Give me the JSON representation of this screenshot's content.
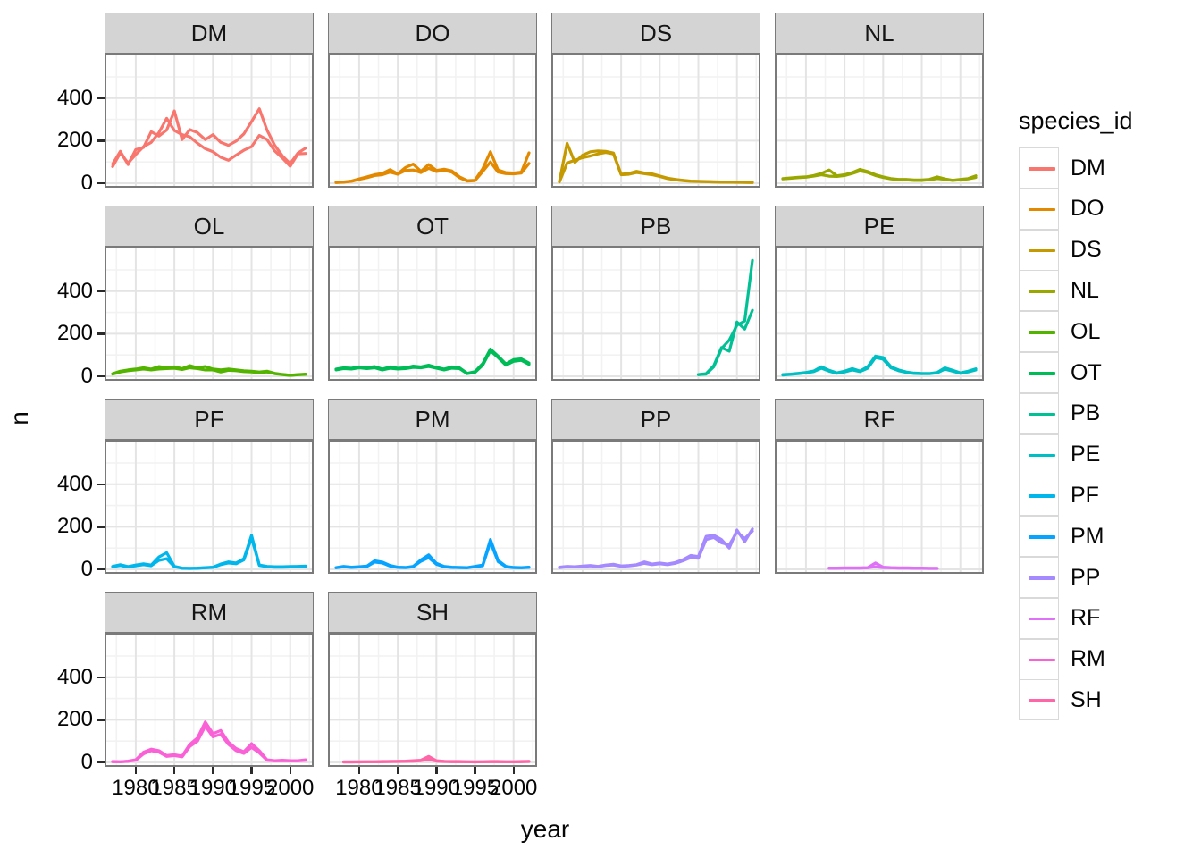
{
  "chart_data": {
    "type": "line",
    "title": "",
    "xlabel": "year",
    "ylabel": "n",
    "legend_title": "species_id",
    "legend_position": "right",
    "grid": "major+minor",
    "x_ticks": [
      "1980",
      "1985",
      "1990",
      "1995",
      "2000"
    ],
    "x_tick_years": [
      1980,
      1985,
      1990,
      1995,
      2000
    ],
    "y_ticks": [
      0,
      200,
      400
    ],
    "xlim": [
      1977,
      2002
    ],
    "ylim": [
      0,
      570
    ],
    "facet_order": [
      "DM",
      "DO",
      "DS",
      "NL",
      "OL",
      "OT",
      "PB",
      "PE",
      "PF",
      "PM",
      "PP",
      "RF",
      "RM",
      "SH"
    ],
    "facets": [
      {
        "id": "DM",
        "color": "#F8766D",
        "series": [
          {
            "name": "line-a",
            "year_start": 1977,
            "values": [
              90,
              150,
              88,
              158,
              168,
              242,
              222,
              250,
              340,
              205,
              252,
              238,
              205,
              228,
              192,
              178,
              198,
              232,
              290,
              350,
              250,
              178,
              128,
              92,
              142,
              165
            ]
          },
          {
            "name": "line-b",
            "year_start": 1977,
            "values": [
              78,
              142,
              95,
              135,
              172,
              192,
              238,
              305,
              248,
              228,
              218,
              188,
              162,
              148,
              122,
              108,
              132,
              155,
              172,
              225,
              205,
              152,
              118,
              80,
              138,
              140
            ]
          }
        ]
      },
      {
        "id": "DO",
        "color": "#E38900",
        "series": [
          {
            "name": "line-a",
            "year_start": 1977,
            "values": [
              4,
              6,
              10,
              20,
              30,
              40,
              46,
              64,
              44,
              74,
              90,
              56,
              88,
              60,
              66,
              58,
              30,
              12,
              14,
              68,
              148,
              62,
              50,
              48,
              52,
              143
            ]
          },
          {
            "name": "line-b",
            "year_start": 1977,
            "values": [
              3,
              5,
              9,
              18,
              26,
              36,
              40,
              52,
              42,
              60,
              62,
              50,
              70,
              55,
              60,
              52,
              26,
              10,
              12,
              55,
              100,
              52,
              45,
              44,
              48,
              93
            ]
          }
        ]
      },
      {
        "id": "DS",
        "color": "#C49A00",
        "series": [
          {
            "name": "line-a",
            "year_start": 1977,
            "values": [
              8,
              188,
              98,
              132,
              148,
              152,
              150,
              142,
              42,
              46,
              56,
              48,
              44,
              34,
              24,
              18,
              14,
              10,
              9,
              8,
              7,
              6,
              5,
              5,
              4,
              4
            ]
          },
          {
            "name": "line-b",
            "year_start": 1977,
            "values": [
              6,
              95,
              108,
              120,
              128,
              138,
              145,
              138,
              40,
              42,
              50,
              45,
              40,
              32,
              22,
              16,
              12,
              9,
              8,
              7,
              6,
              5,
              5,
              4,
              4,
              3
            ]
          }
        ]
      },
      {
        "id": "NL",
        "color": "#99A800",
        "series": [
          {
            "name": "line-a",
            "year_start": 1977,
            "values": [
              22,
              25,
              28,
              30,
              36,
              46,
              62,
              35,
              40,
              50,
              65,
              55,
              40,
              30,
              22,
              18,
              18,
              15,
              15,
              18,
              30,
              20,
              14,
              18,
              22,
              35
            ]
          },
          {
            "name": "line-b",
            "year_start": 1977,
            "values": [
              20,
              23,
              26,
              28,
              33,
              40,
              33,
              32,
              36,
              46,
              58,
              50,
              36,
              27,
              20,
              16,
              16,
              13,
              13,
              16,
              22,
              18,
              13,
              16,
              20,
              27
            ]
          }
        ]
      },
      {
        "id": "OL",
        "color": "#53B400",
        "series": [
          {
            "name": "line-a",
            "year_start": 1977,
            "values": [
              12,
              24,
              30,
              34,
              40,
              34,
              46,
              40,
              44,
              36,
              50,
              40,
              46,
              34,
              30,
              34,
              30,
              26,
              24,
              20,
              24,
              14,
              9,
              5,
              8,
              10
            ]
          },
          {
            "name": "line-b",
            "year_start": 1977,
            "values": [
              10,
              20,
              26,
              30,
              34,
              30,
              34,
              36,
              38,
              32,
              40,
              36,
              30,
              30,
              20,
              28,
              26,
              22,
              20,
              17,
              20,
              12,
              8,
              4,
              7,
              9
            ]
          }
        ]
      },
      {
        "id": "OT",
        "color": "#00BC57",
        "series": [
          {
            "name": "line-a",
            "year_start": 1977,
            "values": [
              34,
              40,
              38,
              44,
              40,
              46,
              34,
              44,
              38,
              40,
              48,
              44,
              52,
              42,
              34,
              44,
              40,
              14,
              22,
              60,
              128,
              95,
              58,
              78,
              82,
              62
            ]
          },
          {
            "name": "line-b",
            "year_start": 1977,
            "values": [
              30,
              36,
              34,
              40,
              36,
              40,
              30,
              38,
              34,
              36,
              42,
              40,
              46,
              38,
              30,
              38,
              36,
              12,
              18,
              52,
              120,
              88,
              52,
              70,
              75,
              56
            ]
          }
        ]
      },
      {
        "id": "PB",
        "color": "#00C094",
        "series": [
          {
            "name": "line-a",
            "year_start": 1995,
            "values": [
              8,
              10,
              45,
              130,
              170,
              240,
              260,
              545
            ]
          },
          {
            "name": "line-b",
            "year_start": 1995,
            "values": [
              8,
              12,
              50,
              135,
              118,
              255,
              222,
              310
            ]
          }
        ]
      },
      {
        "id": "PE",
        "color": "#00BFC4",
        "series": [
          {
            "name": "line-a",
            "year_start": 1977,
            "values": [
              8,
              10,
              14,
              18,
              25,
              45,
              28,
              16,
              24,
              36,
              25,
              45,
              95,
              88,
              45,
              30,
              20,
              15,
              13,
              13,
              18,
              40,
              28,
              16,
              24,
              35
            ]
          },
          {
            "name": "line-b",
            "year_start": 1977,
            "values": [
              6,
              9,
              12,
              16,
              22,
              38,
              24,
              14,
              20,
              30,
              22,
              38,
              88,
              80,
              40,
              26,
              18,
              13,
              12,
              12,
              16,
              33,
              24,
              14,
              20,
              30
            ]
          }
        ]
      },
      {
        "id": "PF",
        "color": "#00B6EB",
        "series": [
          {
            "name": "line-a",
            "year_start": 1977,
            "values": [
              14,
              22,
              13,
              20,
              26,
              20,
              58,
              78,
              14,
              6,
              5,
              6,
              8,
              10,
              25,
              35,
              30,
              50,
              160,
              20,
              14,
              12,
              12,
              13,
              14,
              15
            ]
          },
          {
            "name": "line-b",
            "year_start": 1977,
            "values": [
              12,
              18,
              11,
              17,
              22,
              17,
              42,
              50,
              12,
              5,
              4,
              5,
              7,
              9,
              22,
              30,
              26,
              44,
              148,
              18,
              12,
              10,
              10,
              11,
              12,
              13
            ]
          }
        ]
      },
      {
        "id": "PM",
        "color": "#06A4FF",
        "series": [
          {
            "name": "line-a",
            "year_start": 1977,
            "values": [
              8,
              14,
              10,
              12,
              15,
              40,
              34,
              18,
              10,
              9,
              14,
              44,
              68,
              28,
              14,
              10,
              9,
              8,
              14,
              20,
              140,
              42,
              14,
              9,
              8,
              10
            ]
          },
          {
            "name": "line-b",
            "year_start": 1977,
            "values": [
              7,
              12,
              9,
              11,
              13,
              34,
              30,
              15,
              9,
              8,
              12,
              38,
              55,
              24,
              12,
              9,
              8,
              7,
              12,
              17,
              128,
              36,
              12,
              8,
              7,
              9
            ]
          }
        ]
      },
      {
        "id": "PP",
        "color": "#A58AFF",
        "series": [
          {
            "name": "line-a",
            "year_start": 1977,
            "values": [
              10,
              14,
              12,
              15,
              18,
              14,
              20,
              24,
              16,
              18,
              22,
              35,
              25,
              30,
              25,
              32,
              45,
              65,
              60,
              155,
              160,
              140,
              100,
              185,
              130,
              190
            ]
          },
          {
            "name": "line-b",
            "year_start": 1977,
            "values": [
              8,
              12,
              11,
              13,
              16,
              12,
              18,
              20,
              14,
              16,
              20,
              28,
              22,
              26,
              22,
              28,
              40,
              55,
              52,
              140,
              150,
              125,
              115,
              175,
              145,
              180
            ]
          }
        ]
      },
      {
        "id": "RF",
        "color": "#DF70F8",
        "series": [
          {
            "name": "line-a",
            "year_start": 1983,
            "values": [
              6,
              6,
              7,
              7,
              7,
              8,
              30,
              10,
              8,
              7,
              7,
              6,
              6,
              5,
              5
            ]
          },
          {
            "name": "line-b",
            "year_start": 1983,
            "values": [
              5,
              5,
              6,
              6,
              6,
              7,
              12,
              8,
              7,
              6,
              6,
              5,
              5,
              4,
              4
            ]
          }
        ]
      },
      {
        "id": "RM",
        "color": "#FB61D7",
        "series": [
          {
            "name": "line-a",
            "year_start": 1977,
            "values": [
              4,
              3,
              6,
              12,
              48,
              62,
              55,
              32,
              36,
              30,
              85,
              115,
              190,
              135,
              150,
              95,
              65,
              50,
              88,
              55,
              12,
              8,
              10,
              8,
              8,
              12
            ]
          },
          {
            "name": "line-b",
            "year_start": 1977,
            "values": [
              3,
              3,
              5,
              10,
              40,
              55,
              48,
              28,
              32,
              26,
              75,
              100,
              170,
              120,
              132,
              85,
              55,
              42,
              70,
              45,
              10,
              7,
              8,
              7,
              7,
              10
            ]
          }
        ]
      },
      {
        "id": "SH",
        "color": "#FF66A8",
        "series": [
          {
            "name": "line-a",
            "year_start": 1978,
            "values": [
              2,
              2,
              3,
              3,
              3,
              4,
              4,
              5,
              6,
              8,
              10,
              28,
              8,
              5,
              4,
              4,
              3,
              3,
              3,
              4,
              4,
              3,
              3,
              4,
              5
            ]
          },
          {
            "name": "line-b",
            "year_start": 1978,
            "values": [
              2,
              2,
              2,
              3,
              3,
              3,
              4,
              4,
              5,
              6,
              8,
              14,
              6,
              4,
              3,
              3,
              3,
              2,
              3,
              3,
              3,
              3,
              3,
              3,
              4
            ]
          }
        ]
      }
    ]
  }
}
